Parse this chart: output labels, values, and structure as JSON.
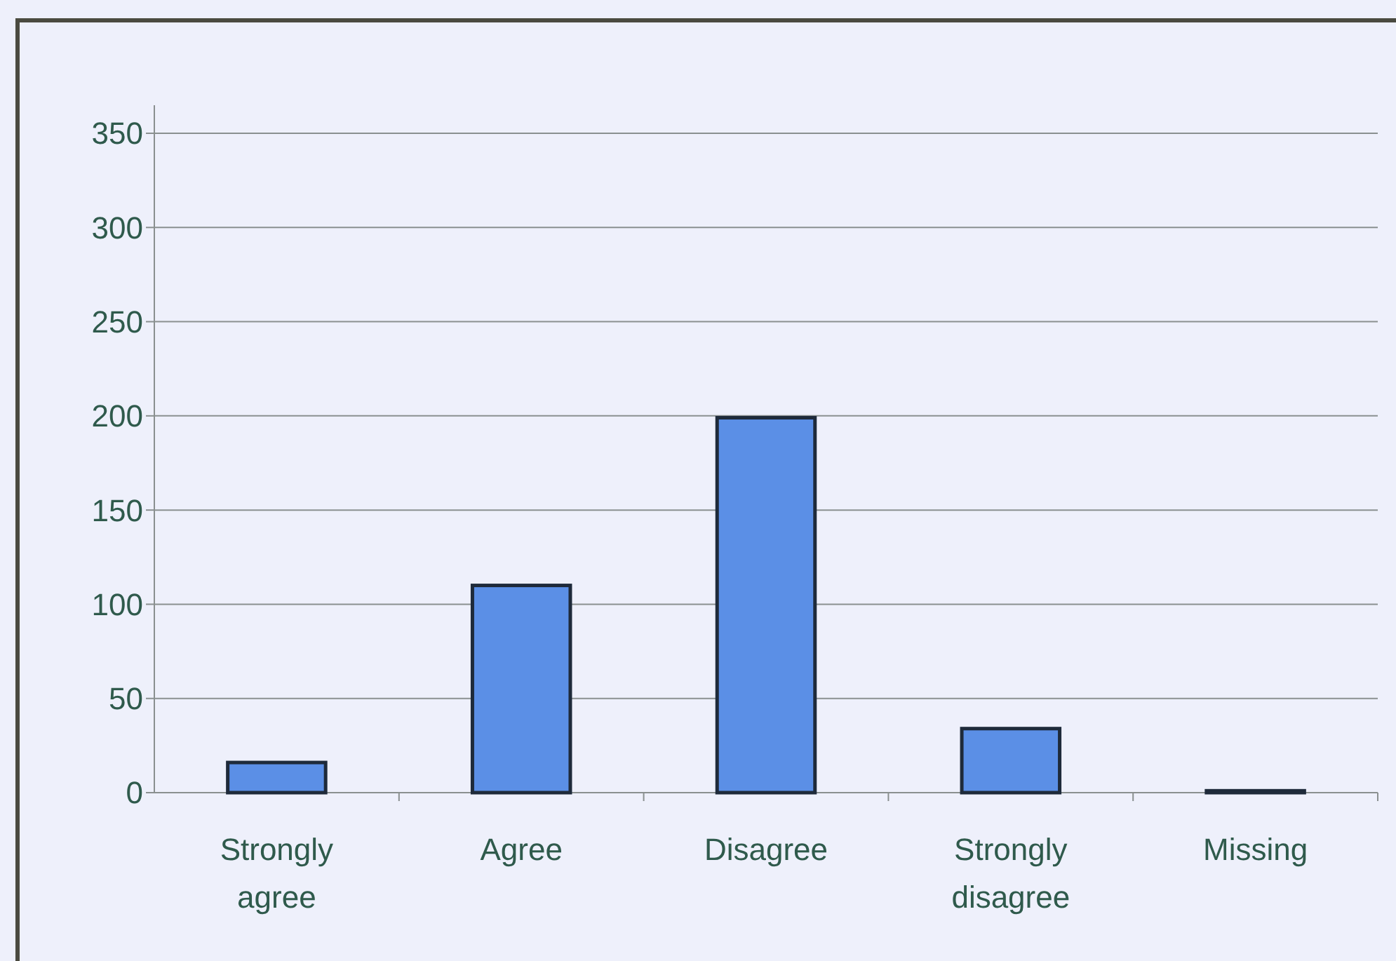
{
  "chart_data": {
    "type": "bar",
    "categories": [
      "Strongly agree",
      "Agree",
      "Disagree",
      "Strongly disagree",
      "Missing"
    ],
    "values": [
      16,
      110,
      199,
      34,
      1
    ],
    "color": "#5b8fe6",
    "ylim": [
      0,
      350
    ],
    "yticks": [
      0,
      50,
      100,
      150,
      200,
      250,
      300,
      350
    ],
    "grid": "y"
  }
}
